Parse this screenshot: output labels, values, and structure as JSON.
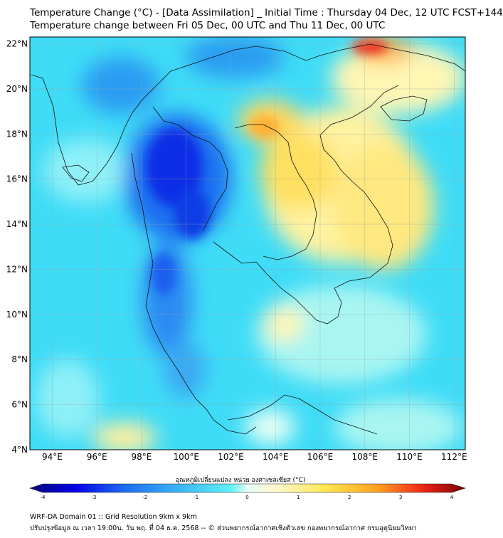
{
  "header": {
    "title_line1": "Temperature Change (°C) - [Data Assimilation] _ Initial Time : Thursday 04 Dec, 12 UTC FCST+144",
    "title_line2": "Temperature change between Fri 05 Dec, 00 UTC and Thu 11 Dec, 00 UTC"
  },
  "map": {
    "lat_labels": [
      "22°N",
      "20°N",
      "18°N",
      "16°N",
      "14°N",
      "12°N",
      "10°N",
      "8°N",
      "6°N",
      "4°N"
    ],
    "lon_labels": [
      "94°E",
      "96°E",
      "98°E",
      "100°E",
      "102°E",
      "104°E",
      "106°E",
      "108°E",
      "110°E",
      "112°E"
    ],
    "lat_range": [
      4,
      22.3
    ],
    "lon_range": [
      93,
      112.5
    ],
    "background_color": "#3fdcf7"
  },
  "colorbar": {
    "title": "อุณหภูมิเปลี่ยนแปลง หน่วย องศาเซลเซียส (°C)",
    "tick_labels": [
      "-4",
      "-3",
      "-2",
      "-1",
      "0",
      "1",
      "2",
      "3",
      "4"
    ],
    "range": [
      -4,
      4
    ],
    "colors": [
      "#0a0a78",
      "#0000e6",
      "#1e6ef0",
      "#3fbef5",
      "#5ef0f8",
      "#e6fff4",
      "#fffad2",
      "#ffe650",
      "#ffa020",
      "#f02818",
      "#780000"
    ]
  },
  "footer": {
    "line1": "WRF-DA Domain 01 :: Grid Resolution 9km x 9km",
    "line2": "ปรับปรุงข้อมูล ณ เวลา 19:00น. วัน พฤ. ที่ 04 ธ.ค. 2568 -- © ส่วนพยากรณ์อากาศเชิงตัวเลข กองพยากรณ์อากาศ กรมอุตุนิยมวิทยา"
  }
}
